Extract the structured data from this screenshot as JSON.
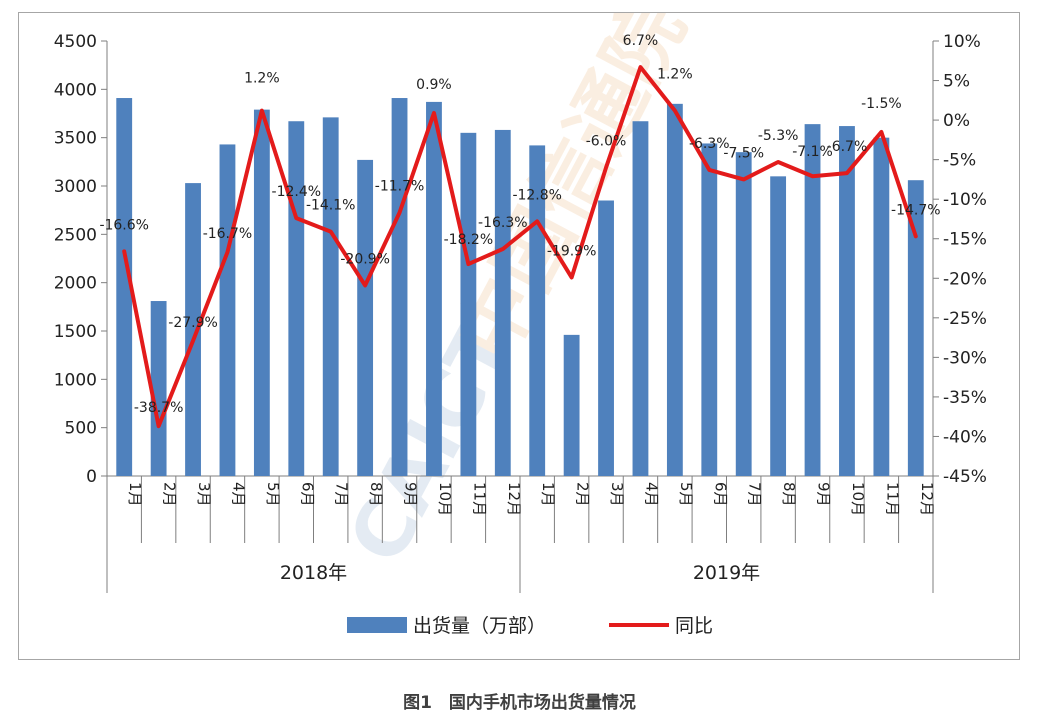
{
  "caption": "图1　国内手机市场出货量情况",
  "chart_data": {
    "type": "bar+line",
    "categories": [
      "1月",
      "2月",
      "3月",
      "4月",
      "5月",
      "6月",
      "7月",
      "8月",
      "9月",
      "10月",
      "11月",
      "12月",
      "1月",
      "2月",
      "3月",
      "4月",
      "5月",
      "6月",
      "7月",
      "8月",
      "9月",
      "10月",
      "11月",
      "12月"
    ],
    "groups": [
      {
        "label": "2018年",
        "count": 12
      },
      {
        "label": "2019年",
        "count": 12
      }
    ],
    "series": [
      {
        "name": "出货量（万部）",
        "kind": "bar",
        "axis": "left",
        "color": "#4f81bd",
        "values": [
          3910,
          1810,
          3030,
          3430,
          3790,
          3670,
          3710,
          3270,
          3910,
          3870,
          3550,
          3580,
          3420,
          1460,
          2850,
          3670,
          3850,
          3440,
          3350,
          3100,
          3640,
          3620,
          3500,
          3060
        ]
      },
      {
        "name": "同比",
        "kind": "line",
        "axis": "right",
        "color": "#e31b1b",
        "values": [
          -16.6,
          -38.7,
          -27.9,
          -16.7,
          1.2,
          -12.4,
          -14.1,
          -20.9,
          -11.7,
          0.9,
          -18.2,
          -16.3,
          -12.8,
          -19.9,
          -6.0,
          6.7,
          1.2,
          -6.3,
          -7.5,
          -5.3,
          -7.1,
          -6.7,
          -1.5,
          -14.7
        ],
        "labels": [
          "-16.6%",
          "-38.7%",
          "-27.9%",
          "-16.7%",
          "1.2%",
          "-12.4%",
          "-14.1%",
          "-20.9%",
          "-11.7%",
          "0.9%",
          "-18.2%",
          "-16.3%",
          "-12.8%",
          "-19.9%",
          "-6.0%",
          "6.7%",
          "1.2%",
          "-6.3%",
          "-7.5%",
          "-5.3%",
          "-7.1%",
          "-6.7%",
          "-1.5%",
          "-14.7%"
        ]
      }
    ],
    "y_left": {
      "min": 0,
      "max": 4500,
      "step": 500,
      "ticks": [
        "0",
        "500",
        "1000",
        "1500",
        "2000",
        "2500",
        "3000",
        "3500",
        "4000",
        "4500"
      ]
    },
    "y_right": {
      "min": -45,
      "max": 10,
      "step": 5,
      "ticks": [
        "-45%",
        "-40%",
        "-35%",
        "-30%",
        "-25%",
        "-20%",
        "-15%",
        "-10%",
        "-5%",
        "0%",
        "5%",
        "10%"
      ]
    },
    "grid": false,
    "legend": {
      "position": "bottom",
      "items": [
        "出货量（万部）",
        "同比"
      ]
    },
    "watermark": "CAICT 中国信通院"
  }
}
